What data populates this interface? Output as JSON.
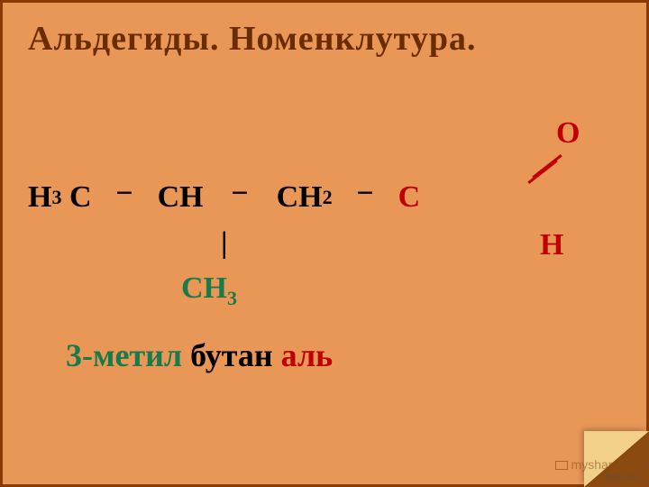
{
  "slide": {
    "background_color": "#e89757",
    "border_color": "#8a3a00",
    "title": {
      "text": "Альдегиды. Номенклутура.",
      "color": "#6b2d00",
      "fontsize": 38
    },
    "formula": {
      "main_chain": {
        "c1": "H",
        "c1_sub": "3",
        "c1_tail": " C",
        "bond": "−",
        "c2": "CH",
        "c3a": "CH",
        "c3_sub": "2",
        "c4": "C",
        "fontsize": 34,
        "chain_color": "#000000",
        "aldehyde_color": "#c00000"
      },
      "oxygen": {
        "text": "O",
        "color": "#c00000",
        "fontsize": 34
      },
      "hydrogen": {
        "text": "H",
        "color": "#c00000",
        "fontsize": 34
      },
      "double_bond_color": "#c00000",
      "vertical_bond": {
        "text": "|",
        "color": "#000000",
        "fontsize": 34
      },
      "branch": {
        "text_a": "CH",
        "sub": "3",
        "color": "#1a7a4a",
        "fontsize": 34
      }
    },
    "name": {
      "fontsize": 36,
      "parts": [
        {
          "text": "3-метил",
          "color": "#1a7a4a"
        },
        {
          "text": " бутан",
          "color": "#000000"
        },
        {
          "text": " аль",
          "color": "#c00000"
        }
      ]
    },
    "page_curl": {
      "shadow_color": "#8a4a10",
      "fold_color": "#f2d08a"
    },
    "watermark": {
      "text": "myshared",
      "color": "#8a4a10"
    },
    "footer": {
      "text": "fppt.com",
      "color": "#555555"
    }
  }
}
